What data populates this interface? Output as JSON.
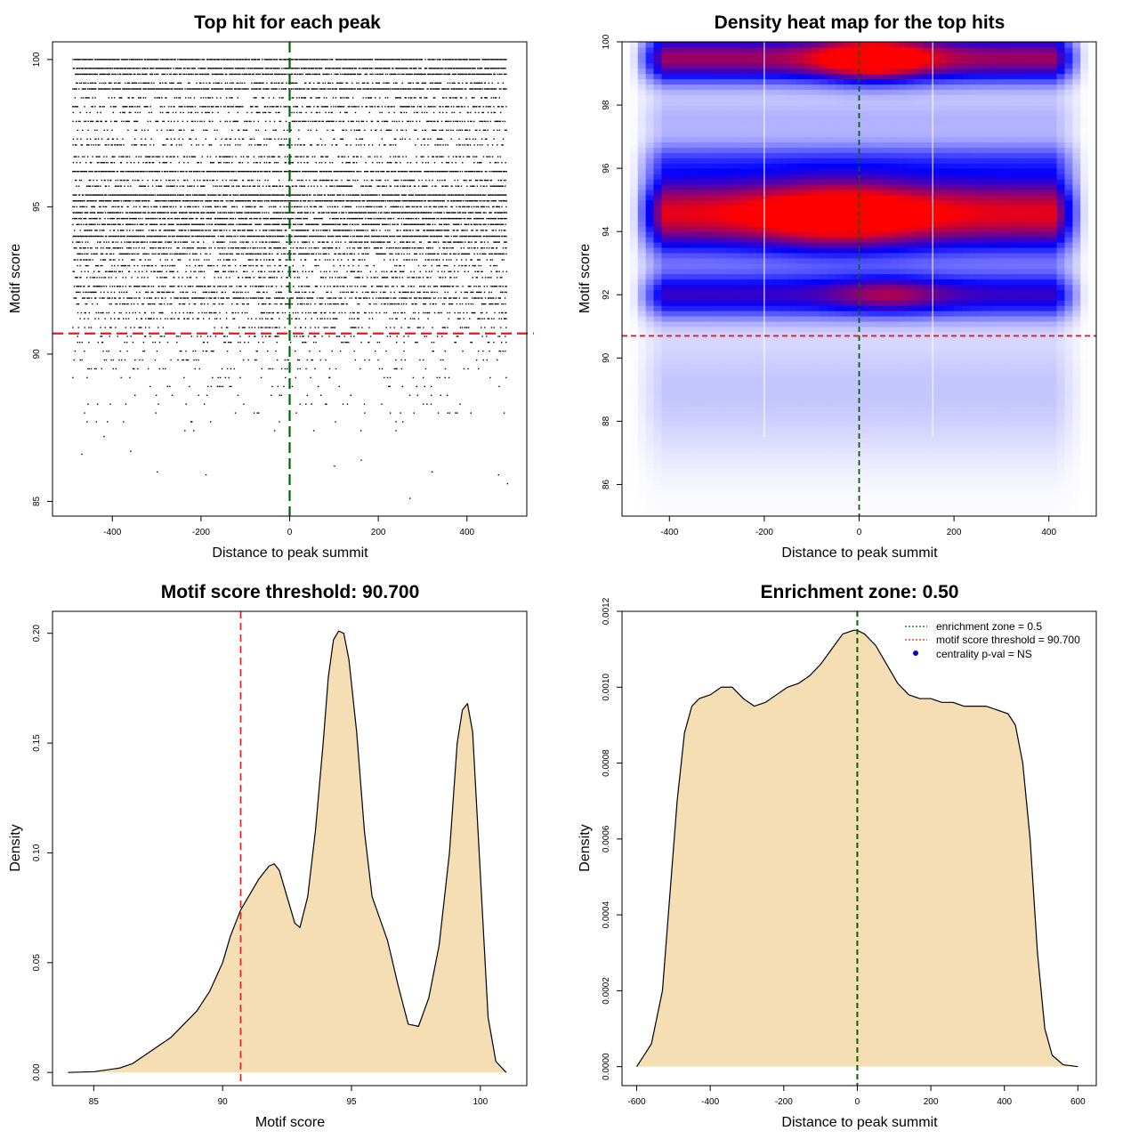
{
  "chart_data": [
    {
      "id": "scatter",
      "type": "scatter",
      "title": "Top hit for each peak",
      "xlabel": "Distance to peak summit",
      "ylabel": "Motif score",
      "xlim": [
        -535,
        535
      ],
      "ylim": [
        84.5,
        100.6
      ],
      "x_ticks": [
        -400,
        -200,
        0,
        200,
        400
      ],
      "y_ticks": [
        85,
        90,
        95,
        100
      ],
      "ref_lines": [
        {
          "orientation": "vertical",
          "value": 0,
          "color": "#006400",
          "style": "dashed"
        },
        {
          "orientation": "horizontal",
          "value": 90.7,
          "color": "#e41a1c",
          "style": "dashed"
        }
      ],
      "score_levels": [
        {
          "score": 100.0,
          "density": 0.95
        },
        {
          "score": 99.7,
          "density": 0.9
        },
        {
          "score": 99.5,
          "density": 0.8
        },
        {
          "score": 99.2,
          "density": 0.55
        },
        {
          "score": 99.0,
          "density": 0.9
        },
        {
          "score": 98.7,
          "density": 0.35
        },
        {
          "score": 98.4,
          "density": 0.55
        },
        {
          "score": 98.2,
          "density": 0.3
        },
        {
          "score": 97.9,
          "density": 0.45
        },
        {
          "score": 97.6,
          "density": 0.3
        },
        {
          "score": 97.3,
          "density": 0.25
        },
        {
          "score": 97.1,
          "density": 0.3
        },
        {
          "score": 96.7,
          "density": 0.45
        },
        {
          "score": 96.5,
          "density": 0.35
        },
        {
          "score": 96.2,
          "density": 0.9
        },
        {
          "score": 95.9,
          "density": 0.45
        },
        {
          "score": 95.7,
          "density": 0.55
        },
        {
          "score": 95.4,
          "density": 0.9
        },
        {
          "score": 95.2,
          "density": 0.85
        },
        {
          "score": 95.0,
          "density": 0.55
        },
        {
          "score": 94.8,
          "density": 0.85
        },
        {
          "score": 94.6,
          "density": 0.75
        },
        {
          "score": 94.4,
          "density": 0.8
        },
        {
          "score": 94.2,
          "density": 0.6
        },
        {
          "score": 94.0,
          "density": 0.9
        },
        {
          "score": 93.8,
          "density": 0.5
        },
        {
          "score": 93.6,
          "density": 0.55
        },
        {
          "score": 93.4,
          "density": 0.6
        },
        {
          "score": 93.2,
          "density": 0.3
        },
        {
          "score": 93.0,
          "density": 0.35
        },
        {
          "score": 92.8,
          "density": 0.4
        },
        {
          "score": 92.6,
          "density": 0.35
        },
        {
          "score": 92.3,
          "density": 0.55
        },
        {
          "score": 92.1,
          "density": 0.45
        },
        {
          "score": 91.9,
          "density": 0.6
        },
        {
          "score": 91.7,
          "density": 0.4
        },
        {
          "score": 91.4,
          "density": 0.35
        },
        {
          "score": 91.2,
          "density": 0.3
        },
        {
          "score": 90.9,
          "density": 0.25
        },
        {
          "score": 90.6,
          "density": 0.2
        },
        {
          "score": 90.4,
          "density": 0.15
        },
        {
          "score": 90.1,
          "density": 0.12
        },
        {
          "score": 89.8,
          "density": 0.12
        },
        {
          "score": 89.5,
          "density": 0.1
        },
        {
          "score": 89.2,
          "density": 0.08
        },
        {
          "score": 88.9,
          "density": 0.07
        },
        {
          "score": 88.6,
          "density": 0.06
        },
        {
          "score": 88.3,
          "density": 0.05
        },
        {
          "score": 88.0,
          "density": 0.04
        },
        {
          "score": 87.7,
          "density": 0.03
        },
        {
          "score": 87.4,
          "density": 0.02
        }
      ],
      "sparse_points": [
        {
          "x": -470,
          "y": 86.6
        },
        {
          "x": -360,
          "y": 86.7
        },
        {
          "x": -300,
          "y": 86.0
        },
        {
          "x": -190,
          "y": 85.9
        },
        {
          "x": 100,
          "y": 86.2
        },
        {
          "x": 270,
          "y": 85.1
        },
        {
          "x": 320,
          "y": 86.0
        },
        {
          "x": 470,
          "y": 85.9
        },
        {
          "x": 490,
          "y": 85.6
        },
        {
          "x": -420,
          "y": 87.2
        },
        {
          "x": 160,
          "y": 86.4
        }
      ]
    },
    {
      "id": "heatmap",
      "type": "heatmap",
      "title": "Density heat map for the top hits",
      "xlabel": "Distance to peak summit",
      "ylabel": "Motif score",
      "xlim": [
        -500,
        500
      ],
      "ylim": [
        85,
        100
      ],
      "x_ticks": [
        -400,
        -200,
        0,
        200,
        400
      ],
      "y_ticks": [
        86,
        88,
        90,
        92,
        94,
        96,
        98,
        100
      ],
      "ref_lines": [
        {
          "orientation": "vertical",
          "value": 0,
          "color": "#006400",
          "style": "dashed"
        },
        {
          "orientation": "horizontal",
          "value": 90.7,
          "color": "#e41a1c",
          "style": "dashed"
        }
      ],
      "bands": [
        {
          "center": 99.5,
          "sigma": 0.55,
          "intensity": 0.85
        },
        {
          "center": 94.6,
          "sigma": 0.9,
          "intensity": 1.0
        },
        {
          "center": 92.0,
          "sigma": 0.5,
          "intensity": 0.6
        },
        {
          "center": 96.3,
          "sigma": 0.45,
          "intensity": 0.25
        },
        {
          "center": 97.6,
          "sigma": 0.5,
          "intensity": 0.15
        },
        {
          "center": 89.0,
          "sigma": 1.6,
          "intensity": 0.12
        }
      ],
      "hotspots": [
        {
          "x": 30,
          "y": 99.5,
          "sx": 80,
          "sy": 0.5,
          "intensity": 0.55
        },
        {
          "x": -40,
          "y": 94.5,
          "sx": 120,
          "sy": 0.8,
          "intensity": 0.35
        },
        {
          "x": 60,
          "y": 92.0,
          "sx": 80,
          "sy": 0.4,
          "intensity": 0.25
        }
      ],
      "grid_x": [
        -200,
        155
      ]
    },
    {
      "id": "score-density",
      "type": "area",
      "title": "Motif score threshold: 90.700",
      "xlabel": "Motif score",
      "ylabel": "Density",
      "xlim": [
        83.4,
        101.8
      ],
      "ylim": [
        -0.006,
        0.21
      ],
      "x_ticks": [
        85,
        90,
        95,
        100
      ],
      "y_ticks": [
        "0.00",
        "0.05",
        "0.10",
        "0.15",
        "0.20"
      ],
      "fill_color": "#f5deb3",
      "ref_lines": [
        {
          "orientation": "vertical",
          "value": 90.7,
          "color": "#e41a1c",
          "style": "dashed"
        }
      ],
      "x": [
        84.0,
        85.0,
        86.0,
        86.5,
        87.0,
        87.5,
        88.0,
        88.5,
        89.0,
        89.5,
        90.0,
        90.3,
        90.7,
        91.0,
        91.4,
        91.8,
        92.0,
        92.2,
        92.5,
        92.8,
        93.0,
        93.3,
        93.6,
        93.9,
        94.1,
        94.3,
        94.5,
        94.7,
        94.9,
        95.2,
        95.5,
        95.8,
        96.1,
        96.4,
        96.8,
        97.2,
        97.6,
        98.0,
        98.4,
        98.8,
        99.1,
        99.3,
        99.5,
        99.7,
        100.0,
        100.3,
        100.6,
        101.0
      ],
      "y": [
        0.0,
        0.0003,
        0.002,
        0.004,
        0.008,
        0.012,
        0.016,
        0.022,
        0.028,
        0.037,
        0.05,
        0.062,
        0.074,
        0.08,
        0.088,
        0.094,
        0.095,
        0.092,
        0.08,
        0.068,
        0.066,
        0.08,
        0.11,
        0.15,
        0.18,
        0.197,
        0.201,
        0.2,
        0.188,
        0.155,
        0.11,
        0.08,
        0.07,
        0.06,
        0.04,
        0.022,
        0.021,
        0.034,
        0.058,
        0.1,
        0.15,
        0.165,
        0.168,
        0.155,
        0.09,
        0.025,
        0.005,
        0.0
      ]
    },
    {
      "id": "distance-density",
      "type": "area",
      "title": "Enrichment zone: 0.50",
      "xlabel": "Distance to peak summit",
      "ylabel": "Density",
      "xlim": [
        -640,
        650
      ],
      "ylim": [
        -5e-05,
        0.0012
      ],
      "x_ticks": [
        -600,
        -400,
        -200,
        0,
        200,
        400,
        600
      ],
      "y_ticks": [
        "0.0000",
        "0.0002",
        "0.0004",
        "0.0006",
        "0.0008",
        "0.0010",
        "0.0012"
      ],
      "fill_color": "#f5deb3",
      "ref_lines": [
        {
          "orientation": "vertical",
          "value": 0,
          "color": "#006400",
          "style": "dashed"
        }
      ],
      "x": [
        -600,
        -560,
        -530,
        -510,
        -490,
        -470,
        -450,
        -430,
        -400,
        -370,
        -340,
        -310,
        -280,
        -250,
        -220,
        -190,
        -160,
        -130,
        -100,
        -70,
        -40,
        -10,
        0,
        20,
        50,
        80,
        110,
        140,
        170,
        200,
        230,
        260,
        290,
        320,
        350,
        380,
        410,
        430,
        450,
        470,
        490,
        510,
        530,
        560,
        600
      ],
      "y": [
        0.0,
        6e-05,
        0.0002,
        0.00045,
        0.0007,
        0.00088,
        0.00095,
        0.00097,
        0.00098,
        0.001,
        0.001,
        0.00097,
        0.00095,
        0.00096,
        0.00098,
        0.001,
        0.00101,
        0.00103,
        0.00106,
        0.0011,
        0.00114,
        0.00115,
        0.00115,
        0.00114,
        0.00111,
        0.00106,
        0.00101,
        0.00098,
        0.00097,
        0.00097,
        0.00096,
        0.00096,
        0.00095,
        0.00095,
        0.00095,
        0.00094,
        0.00093,
        0.0009,
        0.0008,
        0.0006,
        0.0003,
        0.0001,
        3e-05,
        5e-06,
        0.0
      ],
      "legend": [
        {
          "label": "enrichment zone = 0.5",
          "color": "#006400",
          "marker": "dotted-line"
        },
        {
          "label": "motif score threshold = 90.700",
          "color": "#e41a1c",
          "marker": "dotted-line"
        },
        {
          "label": "centrality p-val = NS",
          "color": "#0000cd",
          "marker": "dot"
        }
      ]
    }
  ]
}
